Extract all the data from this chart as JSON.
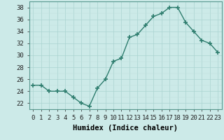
{
  "x": [
    0,
    1,
    2,
    3,
    4,
    5,
    6,
    7,
    8,
    9,
    10,
    11,
    12,
    13,
    14,
    15,
    16,
    17,
    18,
    19,
    20,
    21,
    22,
    23
  ],
  "y": [
    25,
    25,
    24,
    24,
    24,
    23,
    22,
    21.5,
    24.5,
    26,
    29,
    29.5,
    33,
    33.5,
    35,
    36.5,
    37,
    38,
    38,
    35.5,
    34,
    32.5,
    32,
    30.5
  ],
  "xlabel": "Humidex (Indice chaleur)",
  "ylim": [
    21,
    39
  ],
  "xlim": [
    -0.5,
    23.5
  ],
  "yticks": [
    22,
    24,
    26,
    28,
    30,
    32,
    34,
    36,
    38
  ],
  "xticks": [
    0,
    1,
    2,
    3,
    4,
    5,
    6,
    7,
    8,
    9,
    10,
    11,
    12,
    13,
    14,
    15,
    16,
    17,
    18,
    19,
    20,
    21,
    22,
    23
  ],
  "line_color": "#2e7d6e",
  "marker_color": "#2e7d6e",
  "bg_color": "#cceae8",
  "grid_color_major": "#aad4d0",
  "grid_color_minor": "#c0e0dc",
  "tick_fontsize": 6.5,
  "label_fontsize": 7.5
}
